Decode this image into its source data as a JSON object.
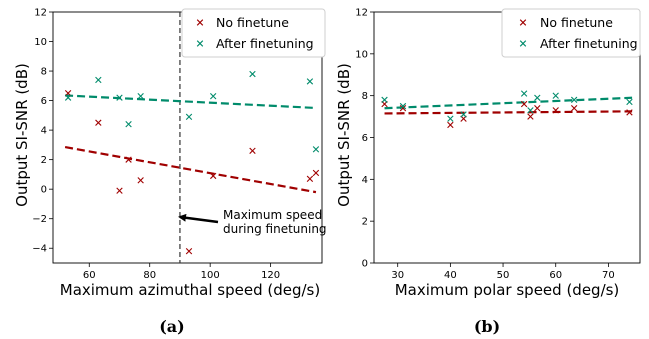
{
  "colors": {
    "no_finetune": "#a00000",
    "after_finetuning": "#008b6b"
  },
  "chart_data": [
    {
      "type": "scatter",
      "caption": "(a)",
      "xlabel": "Maximum azimuthal speed (deg/s)",
      "ylabel": "Output SI-SNR (dB)",
      "xlim": [
        48,
        137
      ],
      "ylim": [
        -5,
        12
      ],
      "xticks": [
        60,
        80,
        100,
        120
      ],
      "yticks": [
        -4,
        -2,
        0,
        2,
        4,
        6,
        8,
        10,
        12
      ],
      "grid": false,
      "legend_position": "top-right",
      "vline": {
        "x": 90,
        "style": "dashed"
      },
      "annotation": {
        "lines": [
          "Maximum speed",
          "during finetuning"
        ],
        "arrow_to": [
          90,
          -2
        ]
      },
      "series": [
        {
          "name": "No finetune",
          "marker": "x",
          "points": [
            [
              53,
              6.5
            ],
            [
              63,
              4.5
            ],
            [
              70,
              -0.1
            ],
            [
              73,
              2.0
            ],
            [
              77,
              0.6
            ],
            [
              93,
              -4.2
            ],
            [
              101,
              0.9
            ],
            [
              114,
              2.6
            ],
            [
              133,
              0.7
            ],
            [
              135,
              1.1
            ]
          ],
          "fit": [
            [
              52,
              2.85
            ],
            [
              135,
              -0.2
            ]
          ]
        },
        {
          "name": "After finetuning",
          "marker": "x",
          "points": [
            [
              53,
              6.2
            ],
            [
              63,
              7.4
            ],
            [
              70,
              6.2
            ],
            [
              73,
              4.4
            ],
            [
              77,
              6.3
            ],
            [
              93,
              4.9
            ],
            [
              101,
              6.3
            ],
            [
              114,
              7.8
            ],
            [
              133,
              7.3
            ],
            [
              135,
              2.7
            ]
          ],
          "fit": [
            [
              52,
              6.35
            ],
            [
              135,
              5.5
            ]
          ]
        }
      ]
    },
    {
      "type": "scatter",
      "caption": "(b)",
      "xlabel": "Maximum polar speed (deg/s)",
      "ylabel": "Output SI-SNR (dB)",
      "xlim": [
        25.5,
        76
      ],
      "ylim": [
        0,
        12
      ],
      "xticks": [
        30,
        40,
        50,
        60,
        70
      ],
      "yticks": [
        0,
        2,
        4,
        6,
        8,
        10,
        12
      ],
      "grid": false,
      "legend_position": "top-right",
      "series": [
        {
          "name": "No finetune",
          "marker": "x",
          "points": [
            [
              27.5,
              7.6
            ],
            [
              31,
              7.4
            ],
            [
              40,
              6.6
            ],
            [
              42.5,
              6.9
            ],
            [
              54,
              7.6
            ],
            [
              55.2,
              7.0
            ],
            [
              56.5,
              7.4
            ],
            [
              60,
              7.3
            ],
            [
              63.5,
              7.4
            ],
            [
              74,
              7.2
            ]
          ],
          "fit": [
            [
              27.5,
              7.15
            ],
            [
              74.5,
              7.25
            ]
          ]
        },
        {
          "name": "After finetuning",
          "marker": "x",
          "points": [
            [
              27.5,
              7.8
            ],
            [
              31,
              7.5
            ],
            [
              40,
              6.9
            ],
            [
              42.5,
              7.1
            ],
            [
              54,
              8.1
            ],
            [
              55.2,
              7.3
            ],
            [
              56.5,
              7.9
            ],
            [
              60,
              8.0
            ],
            [
              63.5,
              7.8
            ],
            [
              74,
              7.7
            ]
          ],
          "fit": [
            [
              27.5,
              7.4
            ],
            [
              74.5,
              7.9
            ]
          ]
        }
      ]
    }
  ]
}
